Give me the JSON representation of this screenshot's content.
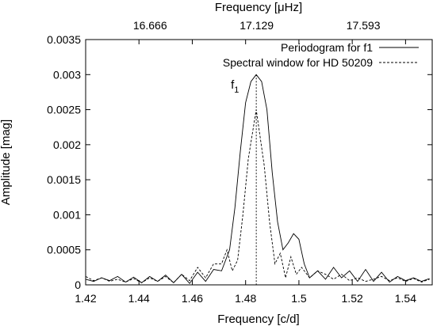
{
  "chart_data": {
    "type": "line",
    "xlabel": "Frequency [c/d]",
    "ylabel": "Amplitude [mag]",
    "x2label": "Frequency [μHz]",
    "xlim": [
      1.42,
      1.55
    ],
    "ylim": [
      0,
      0.0035
    ],
    "x_ticks": [
      1.42,
      1.44,
      1.46,
      1.48,
      1.5,
      1.52,
      1.54
    ],
    "x_tick_labels": [
      "1.42",
      "1.44",
      "1.46",
      "1.48",
      "1.5",
      "1.52",
      "1.54"
    ],
    "y_ticks": [
      0,
      0.0005,
      0.001,
      0.0015,
      0.002,
      0.0025,
      0.003,
      0.0035
    ],
    "y_tick_labels": [
      "0",
      "0.0005",
      "0.001",
      "0.0015",
      "0.002",
      "0.0025",
      "0.003",
      "0.0035"
    ],
    "x2_ticks": [
      1.44,
      1.48,
      1.52
    ],
    "x2_tick_labels": [
      "16.666",
      "17.129",
      "17.593"
    ],
    "grid": false,
    "legend_position": "top-right",
    "annotation": {
      "label": "f",
      "subscript": "1",
      "x": 1.484
    },
    "marker_line_x": 1.484,
    "series": [
      {
        "name": "Periodogram for f1",
        "style": "solid",
        "x": [
          1.42,
          1.423,
          1.426,
          1.429,
          1.432,
          1.435,
          1.438,
          1.441,
          1.444,
          1.447,
          1.45,
          1.453,
          1.456,
          1.459,
          1.462,
          1.465,
          1.468,
          1.471,
          1.474,
          1.476,
          1.478,
          1.48,
          1.482,
          1.484,
          1.486,
          1.488,
          1.49,
          1.492,
          1.494,
          1.496,
          1.498,
          1.5,
          1.502,
          1.504,
          1.507,
          1.51,
          1.513,
          1.516,
          1.519,
          1.522,
          1.525,
          1.528,
          1.531,
          1.534,
          1.537,
          1.54,
          1.543,
          1.546,
          1.549
        ],
        "y": [
          8e-05,
          5e-05,
          0.0001,
          6e-05,
          0.00012,
          4e-05,
          0.00011,
          3e-05,
          0.00012,
          5e-05,
          0.00014,
          3e-05,
          0.00015,
          2e-05,
          0.00018,
          5e-05,
          0.00022,
          0.0002,
          0.0005,
          0.0011,
          0.0019,
          0.0026,
          0.0029,
          0.003,
          0.0029,
          0.0025,
          0.0016,
          0.0009,
          0.0005,
          0.0006,
          0.00073,
          0.00065,
          0.0003,
          0.0001,
          0.0002,
          8e-05,
          0.00025,
          0.0001,
          0.0002,
          5e-05,
          0.00022,
          5e-05,
          0.00018,
          4e-05,
          0.00012,
          6e-05,
          0.0001,
          5e-05,
          9e-05
        ]
      },
      {
        "name": "Spectral window for HD 50209",
        "style": "dashed",
        "x": [
          1.42,
          1.423,
          1.426,
          1.429,
          1.432,
          1.435,
          1.438,
          1.441,
          1.444,
          1.447,
          1.45,
          1.453,
          1.456,
          1.459,
          1.462,
          1.465,
          1.468,
          1.471,
          1.473,
          1.475,
          1.477,
          1.479,
          1.481,
          1.484,
          1.487,
          1.489,
          1.491,
          1.493,
          1.495,
          1.497,
          1.499,
          1.501,
          1.504,
          1.507,
          1.51,
          1.513,
          1.516,
          1.519,
          1.522,
          1.525,
          1.528,
          1.531,
          1.534,
          1.537,
          1.54,
          1.543,
          1.546,
          1.549
        ],
        "y": [
          0.00012,
          6e-05,
          0.0001,
          5e-05,
          8e-05,
          4e-05,
          9e-05,
          3e-05,
          0.0001,
          5e-05,
          0.00012,
          3e-05,
          0.00015,
          6e-05,
          0.00025,
          0.0001,
          0.0003,
          0.0003,
          0.0005,
          0.0002,
          0.00035,
          0.001,
          0.0018,
          0.0025,
          0.0017,
          0.0009,
          0.0003,
          0.00045,
          0.0001,
          0.0004,
          0.00015,
          0.00025,
          0.0001,
          0.0002,
          0.00015,
          8e-05,
          0.00015,
          6e-05,
          0.0001,
          5e-05,
          8e-05,
          0.00012,
          6e-05,
          0.0001,
          5e-05,
          9e-05,
          4e-05,
          8e-05
        ]
      }
    ]
  }
}
